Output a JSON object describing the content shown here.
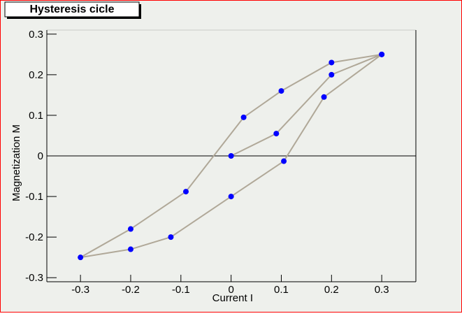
{
  "chart_data": {
    "type": "line",
    "title": "Hysteresis cicle",
    "x_label": "Current I",
    "y_label": "Magnetization M",
    "series": [
      {
        "color": "#b0a898",
        "marker_color": "#0000ff",
        "x": [
          0,
          0.09,
          0.2,
          0.3,
          0.2,
          0.1,
          0.025,
          -0.09,
          -0.2,
          -0.3,
          -0.2,
          -0.12,
          0,
          0.105,
          0.185,
          0.3
        ],
        "values": [
          0,
          0.055,
          0.2,
          0.25,
          0.23,
          0.16,
          0.095,
          -0.088,
          -0.18,
          -0.25,
          -0.23,
          -0.2,
          -0.1,
          -0.013,
          0.145,
          0.25
        ]
      }
    ],
    "xlim": [
      -0.367,
      0.368
    ],
    "ylim": [
      -0.31,
      0.31
    ],
    "xticks": [
      -0.3,
      -0.2,
      -0.1,
      0,
      0.1,
      0.2,
      0.3
    ],
    "yticks": [
      -0.3,
      -0.2,
      -0.1,
      0,
      0.1,
      0.2,
      0.3
    ],
    "zero_line": true
  }
}
